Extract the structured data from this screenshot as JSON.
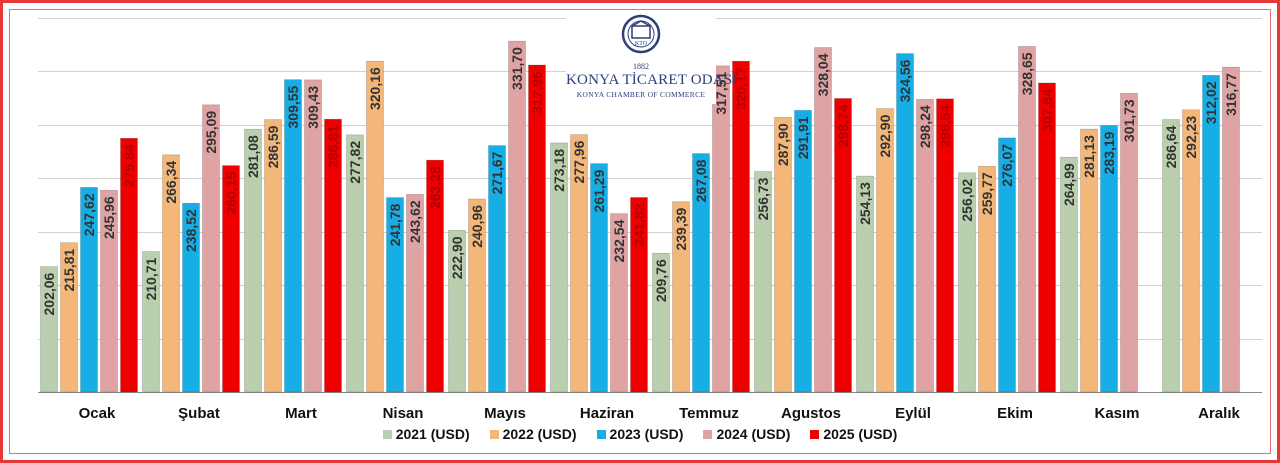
{
  "chart_data": {
    "type": "bar",
    "categories": [
      "Ocak",
      "Şubat",
      "Mart",
      "Nisan",
      "Mayıs",
      "Haziran",
      "Temmuz",
      "Agustos",
      "Eylül",
      "Ekim",
      "Kasım",
      "Aralık"
    ],
    "series": [
      {
        "name": "2021 (USD)",
        "color": "#b9cfae",
        "values": [
          202.06,
          210.71,
          281.08,
          277.82,
          222.9,
          273.18,
          209.76,
          256.73,
          254.13,
          256.02,
          264.99,
          286.64
        ],
        "labels": [
          "202,06",
          "210,71",
          "281,08",
          "277,82",
          "222,90",
          "273,18",
          "209,76",
          "256,73",
          "254,13",
          "256,02",
          "264,99",
          "286,64"
        ]
      },
      {
        "name": "2022 (USD)",
        "color": "#f4b77a",
        "values": [
          215.81,
          266.34,
          286.59,
          320.16,
          240.96,
          277.96,
          239.39,
          287.9,
          292.9,
          259.77,
          281.13,
          292.23
        ],
        "labels": [
          "215,81",
          "266,34",
          "286,59",
          "320,16",
          "240,96",
          "277,96",
          "239,39",
          "287,90",
          "292,90",
          "259,77",
          "281,13",
          "292,23"
        ]
      },
      {
        "name": "2023 (USD)",
        "color": "#17aee6",
        "values": [
          247.62,
          238.52,
          309.55,
          241.78,
          271.67,
          261.29,
          267.08,
          291.91,
          324.56,
          276.07,
          283.19,
          312.02
        ],
        "labels": [
          "247,62",
          "238,52",
          "309,55",
          "241,78",
          "271,67",
          "261,29",
          "267,08",
          "291,91",
          "324,56",
          "276,07",
          "283,19",
          "312,02"
        ]
      },
      {
        "name": "2024 (USD)",
        "color": "#dfa3a3",
        "values": [
          245.96,
          295.09,
          309.43,
          243.62,
          331.7,
          232.54,
          317.51,
          328.04,
          298.24,
          328.65,
          301.73,
          316.77
        ],
        "labels": [
          "245,96",
          "295,09",
          "309,43",
          "243,62",
          "331,70",
          "232,54",
          "317,51",
          "328,04",
          "298,24",
          "328,65",
          "301,73",
          "316,77"
        ]
      },
      {
        "name": "2025 (USD)",
        "color": "#ee0000",
        "values": [
          275.84,
          260.15,
          286.81,
          263.28,
          317.96,
          241.82,
          320.17,
          298.74,
          298.54,
          307.64,
          null,
          null
        ],
        "labels": [
          "275,84",
          "260,15",
          "286,81",
          "263,28",
          "317,96",
          "241,82",
          "320,17",
          "298,74",
          "298,54",
          "307,64",
          "",
          ""
        ]
      }
    ],
    "ylim": [
      130,
      345
    ],
    "grid": true,
    "legend_position": "bottom"
  },
  "logo": {
    "mark": "KTO",
    "year": "1882",
    "name": "KONYA TİCARET ODASI",
    "subtitle": "KONYA CHAMBER OF COMMERCE"
  }
}
